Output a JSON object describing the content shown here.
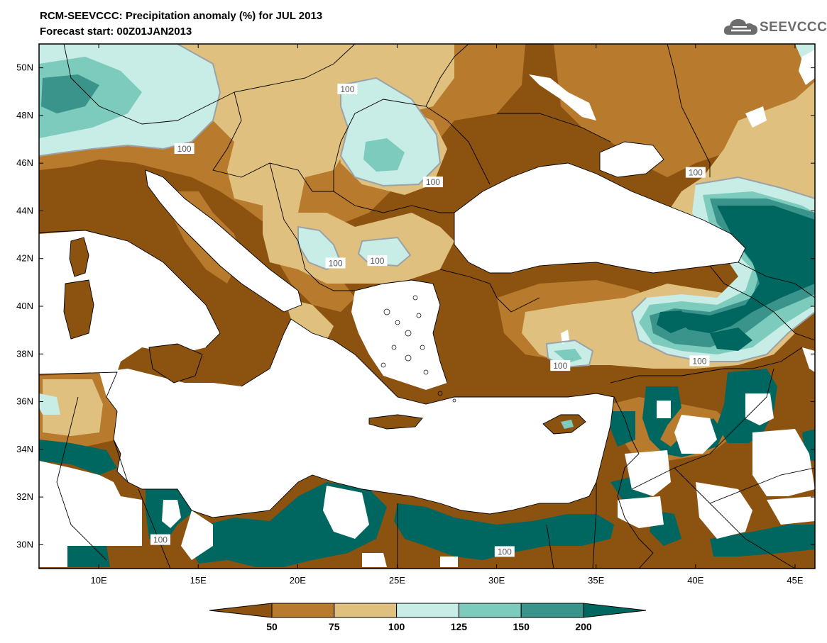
{
  "title": {
    "line1": "RCM-SEEVCCC: Precipitation anomaly (%) for JUL 2013",
    "line2": "Forecast start: 00Z01JAN2013"
  },
  "logo": {
    "text": "SEEVCCC",
    "icon": "cloud-logo-icon"
  },
  "map": {
    "lon_range": [
      7,
      46
    ],
    "lat_range": [
      29,
      51
    ],
    "lat_ticks": [
      "30N",
      "32N",
      "34N",
      "36N",
      "38N",
      "40N",
      "42N",
      "44N",
      "46N",
      "48N",
      "50N"
    ],
    "lon_ticks": [
      "10E",
      "15E",
      "20E",
      "25E",
      "30E",
      "35E",
      "40E",
      "45E"
    ],
    "contour_labels": [
      {
        "text": "100",
        "lon": 22.5,
        "lat": 49.1
      },
      {
        "text": "100",
        "lon": 14.3,
        "lat": 46.6
      },
      {
        "text": "100",
        "lon": 26.8,
        "lat": 45.2
      },
      {
        "text": "100",
        "lon": 21.9,
        "lat": 41.8
      },
      {
        "text": "100",
        "lon": 24.0,
        "lat": 41.9
      },
      {
        "text": "100",
        "lon": 40.0,
        "lat": 45.6
      },
      {
        "text": "100",
        "lon": 33.2,
        "lat": 37.5
      },
      {
        "text": "100",
        "lon": 40.2,
        "lat": 37.7
      },
      {
        "text": "100",
        "lon": 13.1,
        "lat": 30.2
      },
      {
        "text": "100",
        "lon": 30.4,
        "lat": 29.7
      }
    ]
  },
  "colorbar": {
    "ticks": [
      "50",
      "75",
      "100",
      "125",
      "150",
      "200"
    ],
    "colors": [
      "#8c5210",
      "#b87a2c",
      "#dfc07e",
      "#c8ece6",
      "#7ccbbd",
      "#3a948c",
      "#006660"
    ]
  },
  "palette": {
    "sea": "#ffffff",
    "below50": "#8c5210",
    "p50_75": "#b87a2c",
    "p75_100": "#dfc07e",
    "p100_125": "#c8ece6",
    "p125_150": "#7ccbbd",
    "p150_200": "#3a948c",
    "above200": "#006660"
  }
}
